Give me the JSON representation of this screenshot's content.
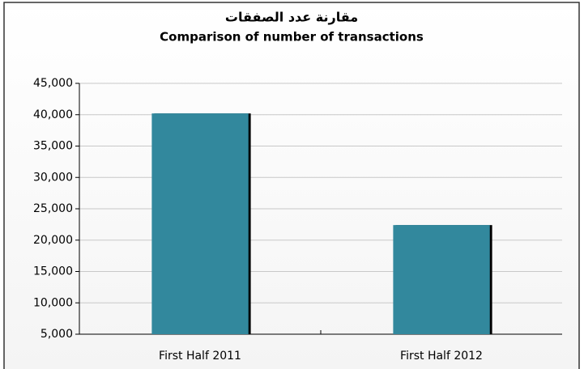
{
  "chart_data": {
    "type": "bar",
    "title": "مقارنة عدد الصفقات",
    "subtitle": "Comparison of number of transactions",
    "categories": [
      "First Half 2011",
      "First Half 2012"
    ],
    "values": [
      40200,
      22400
    ],
    "color": "#31889d",
    "ylim": [
      5000,
      45000
    ],
    "yticks": [
      {
        "value": 5000,
        "label": "5,000"
      },
      {
        "value": 10000,
        "label": "10,000"
      },
      {
        "value": 15000,
        "label": "15,000"
      },
      {
        "value": 20000,
        "label": "20,000"
      },
      {
        "value": 25000,
        "label": "25,000"
      },
      {
        "value": 30000,
        "label": "30,000"
      },
      {
        "value": 35000,
        "label": "35,000"
      },
      {
        "value": 40000,
        "label": "40,000"
      },
      {
        "value": 45000,
        "label": "45,000"
      }
    ],
    "grid": true
  }
}
